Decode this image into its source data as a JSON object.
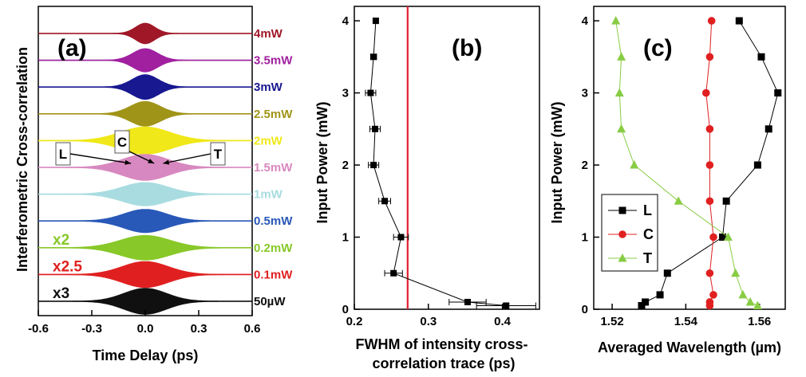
{
  "chart_data": [
    {
      "panel": "a",
      "type": "line",
      "panel_label": "(a)",
      "xlabel": "Time Delay (ps)",
      "ylabel": "Interferometric Cross-correlation",
      "xlim": [
        -0.6,
        0.6
      ],
      "xticks": [
        "-0.6",
        "-0.3",
        "0.0",
        "0.3",
        "0.6"
      ],
      "series": [
        {
          "name": "4mW",
          "color": "#a01828",
          "width": 0.055,
          "height": 0.75
        },
        {
          "name": "3.5mW",
          "color": "#a020a0",
          "width": 0.07,
          "height": 0.85
        },
        {
          "name": "3mW",
          "color": "#181890",
          "width": 0.075,
          "height": 0.9
        },
        {
          "name": "2.5mW",
          "color": "#a09418",
          "width": 0.085,
          "height": 0.9
        },
        {
          "name": "2mW",
          "color": "#f0e818",
          "width": 0.14,
          "height": 1.0
        },
        {
          "name": "1.5mW",
          "color": "#d888c0",
          "width": 0.13,
          "height": 0.95
        },
        {
          "name": "1mW",
          "color": "#a8dce0",
          "width": 0.13,
          "height": 0.85
        },
        {
          "name": "0.5mW",
          "color": "#2858b8",
          "width": 0.12,
          "height": 0.85
        },
        {
          "name": "0.2mW",
          "color": "#88c828",
          "width": 0.14,
          "height": 0.9,
          "scale": "x2"
        },
        {
          "name": "0.1mW",
          "color": "#e02020",
          "width": 0.13,
          "height": 0.95,
          "scale": "x2.5"
        },
        {
          "name": "50µW",
          "color": "#101010",
          "width": 0.12,
          "height": 0.95,
          "scale": "x3"
        }
      ],
      "annotations": [
        {
          "text": "L",
          "target_x": -0.08
        },
        {
          "text": "C",
          "target_x": 0.05
        },
        {
          "text": "T",
          "target_x": 0.1
        }
      ]
    },
    {
      "panel": "b",
      "type": "scatter",
      "panel_label": "(b)",
      "xlabel": "FWHM of intensity cross-correlation trace (ps)",
      "ylabel": "Input Power (mW)",
      "xlim": [
        0.2,
        0.45
      ],
      "ylim": [
        0,
        4.2
      ],
      "xticks": [
        "0.2",
        "0.3",
        "0.4"
      ],
      "yticks": [
        "0",
        "1",
        "2",
        "3",
        "4"
      ],
      "vertical_line_x": 0.272,
      "vertical_line_color": "#e02030",
      "points": [
        {
          "x": 0.405,
          "y": 0.05,
          "err": 0.04
        },
        {
          "x": 0.353,
          "y": 0.1,
          "err": 0.025
        },
        {
          "x": 0.253,
          "y": 0.5,
          "err": 0.012
        },
        {
          "x": 0.263,
          "y": 1.0,
          "err": 0.01
        },
        {
          "x": 0.241,
          "y": 1.5,
          "err": 0.008
        },
        {
          "x": 0.226,
          "y": 2.0,
          "err": 0.007
        },
        {
          "x": 0.228,
          "y": 2.5,
          "err": 0.007
        },
        {
          "x": 0.222,
          "y": 3.0,
          "err": 0.007
        },
        {
          "x": 0.226,
          "y": 3.5,
          "err": 0.004
        },
        {
          "x": 0.229,
          "y": 4.0,
          "err": 0.003
        }
      ]
    },
    {
      "panel": "c",
      "type": "line",
      "panel_label": "(c)",
      "xlabel": "Averaged Wavelength (µm)",
      "ylabel": "Input Power (mW)",
      "xlim": [
        1.515,
        1.567
      ],
      "ylim": [
        0,
        4.2
      ],
      "xticks": [
        "1.52",
        "1.54",
        "1.56"
      ],
      "yticks": [
        "0",
        "1",
        "2",
        "3",
        "4"
      ],
      "legend": "bottom-left",
      "series": [
        {
          "name": "L",
          "color": "#000000",
          "marker": "square",
          "x": [
            1.528,
            1.529,
            1.533,
            1.535,
            1.55,
            1.551,
            1.5595,
            1.5625,
            1.565,
            1.5605,
            1.5545
          ],
          "y": [
            0.05,
            0.1,
            0.2,
            0.5,
            1.0,
            1.5,
            2.0,
            2.5,
            3.0,
            3.5,
            4.0
          ]
        },
        {
          "name": "C",
          "color": "#e02020",
          "marker": "circle",
          "x": [
            1.5465,
            1.5465,
            1.5475,
            1.5465,
            1.5475,
            1.5465,
            1.5465,
            1.5465,
            1.5455,
            1.5465,
            1.547
          ],
          "y": [
            0.05,
            0.1,
            0.2,
            0.5,
            1.0,
            1.5,
            2.0,
            2.5,
            3.0,
            3.5,
            4.0
          ]
        },
        {
          "name": "T",
          "color": "#88cc44",
          "marker": "triangle",
          "x": [
            1.5595,
            1.5575,
            1.5555,
            1.5535,
            1.5515,
            1.538,
            1.526,
            1.5225,
            1.522,
            1.5225,
            1.521
          ],
          "y": [
            0.05,
            0.1,
            0.2,
            0.5,
            1.0,
            1.5,
            2.0,
            2.5,
            3.0,
            3.5,
            4.0
          ]
        }
      ]
    }
  ]
}
